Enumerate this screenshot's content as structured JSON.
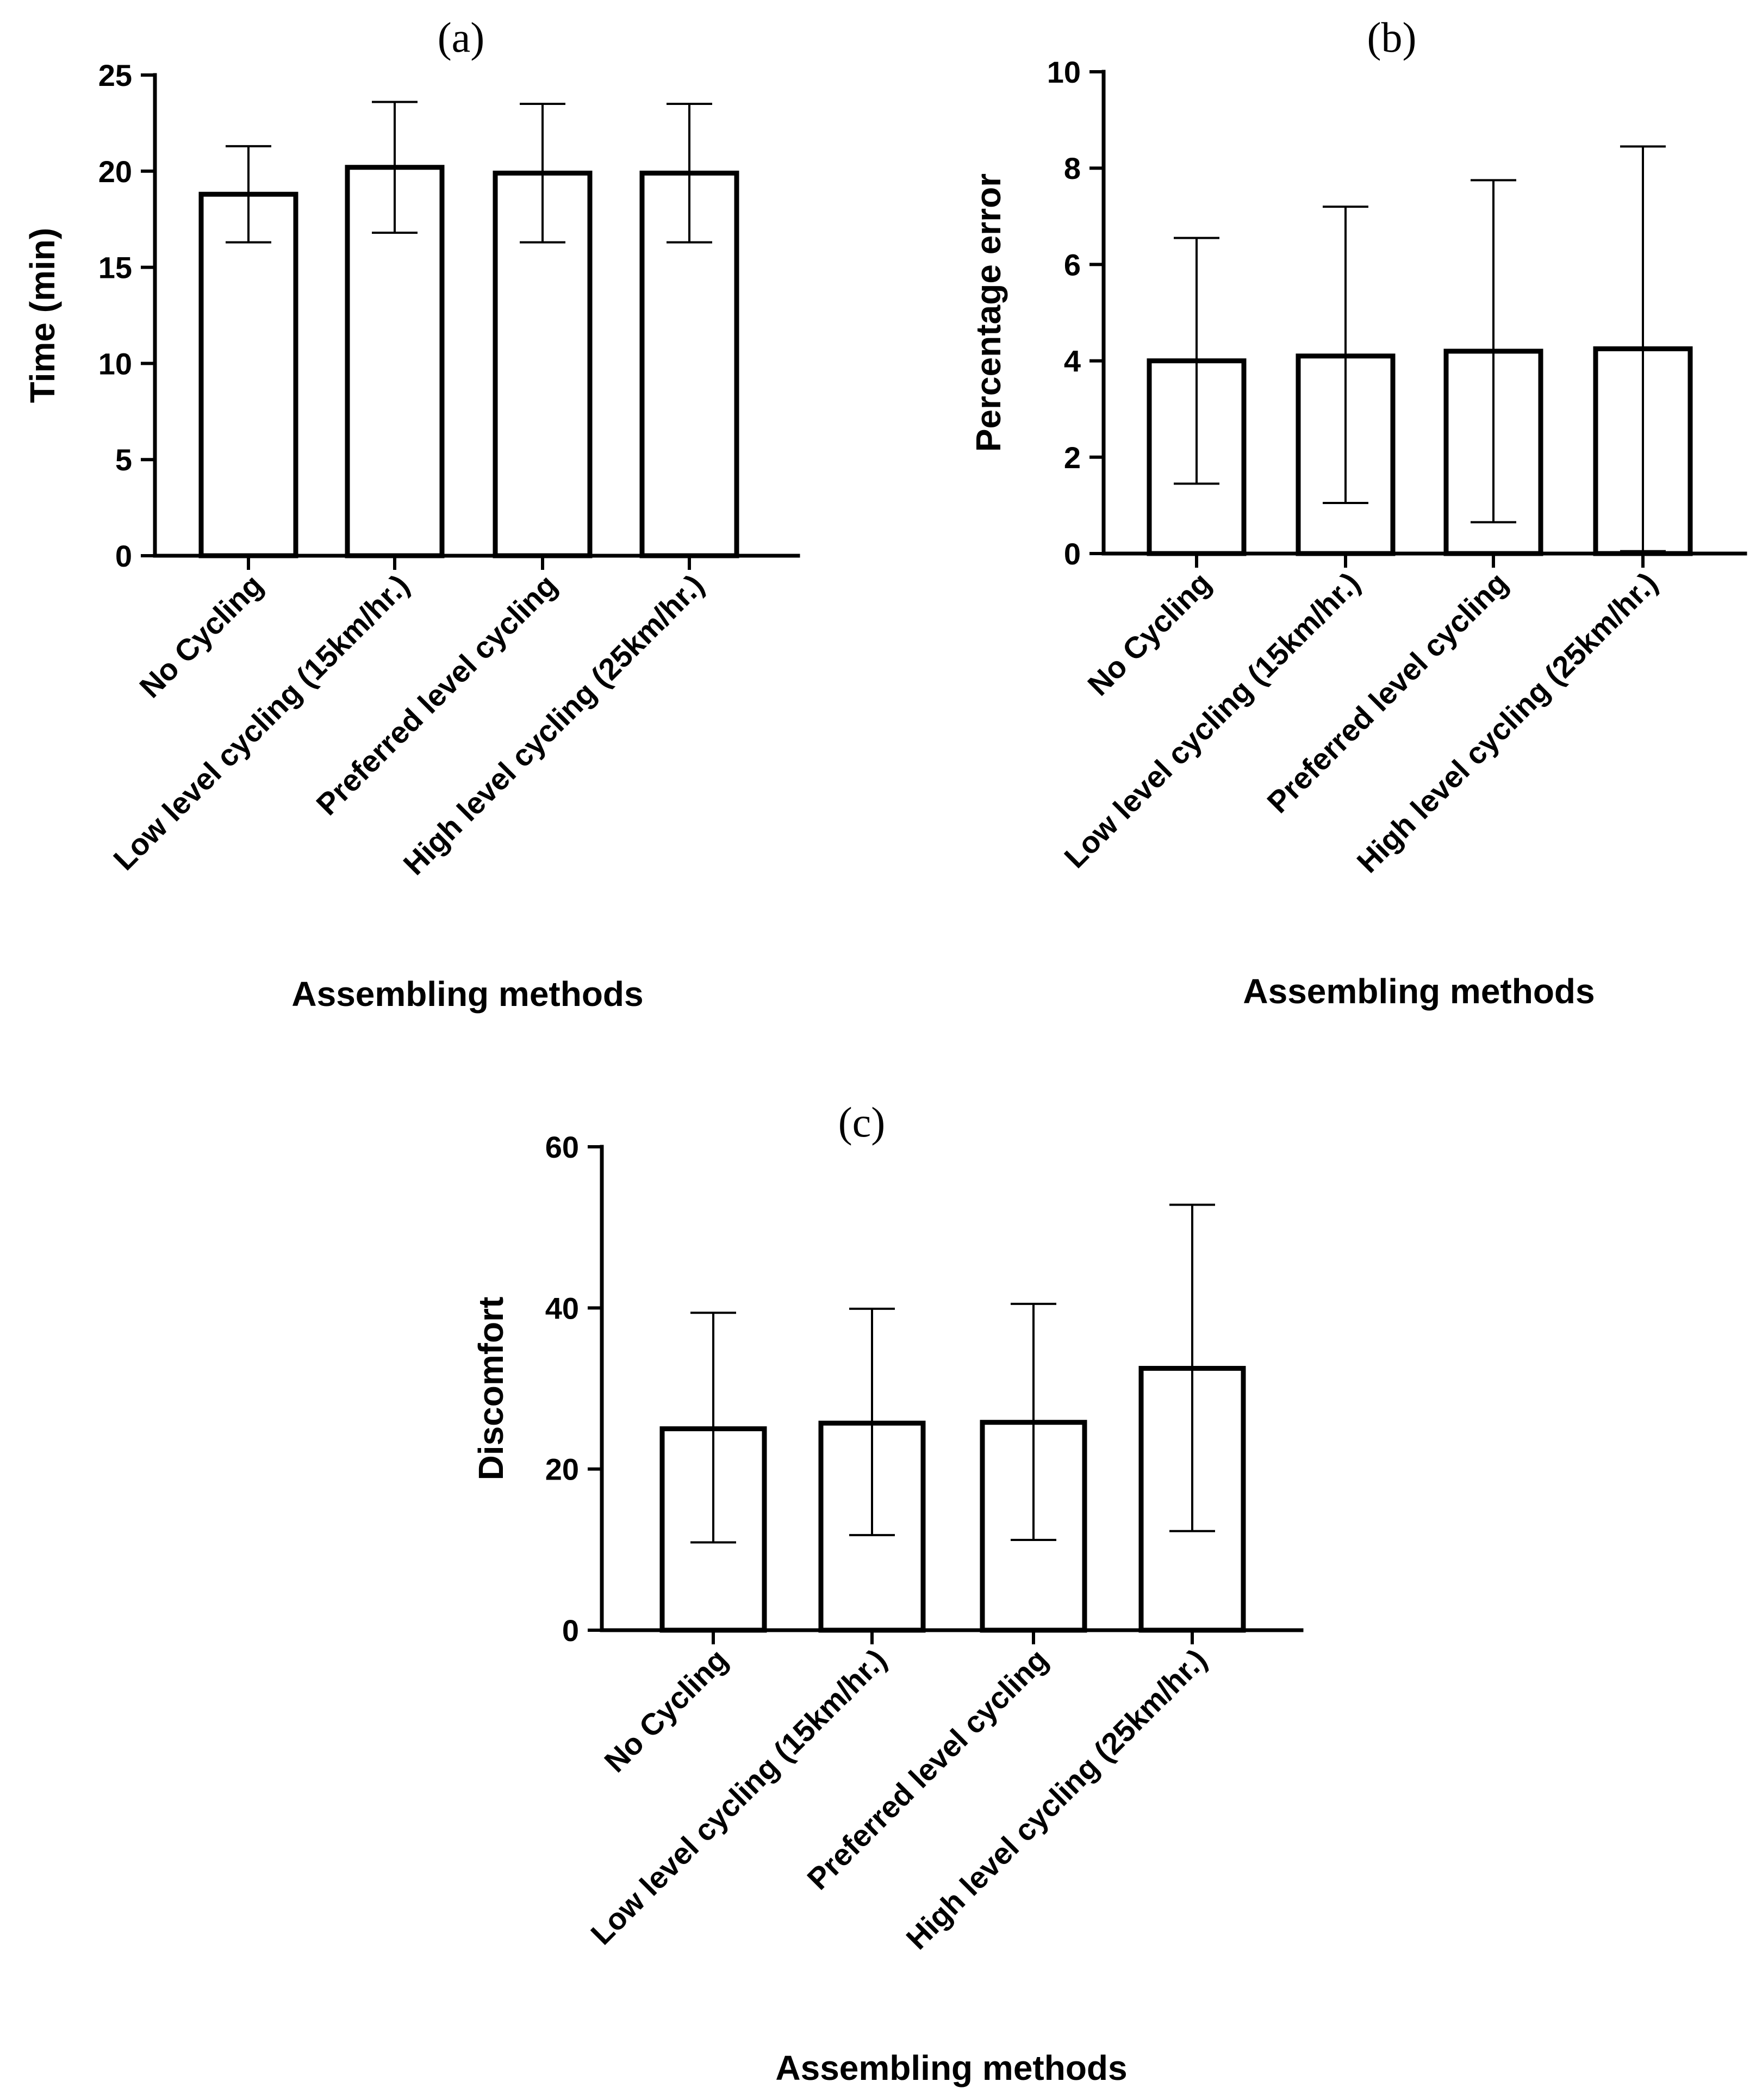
{
  "chart_data": [
    {
      "type": "bar",
      "panel_label": "(a)",
      "categories": [
        "No Cycling",
        "Low level cycling (15km/hr.)",
        "Preferred level cycling",
        "High level cycling (25km/hr.)"
      ],
      "values": [
        18.8,
        20.2,
        19.9,
        19.9
      ],
      "error_low": [
        16.3,
        16.8,
        16.3,
        16.3
      ],
      "error_high": [
        21.3,
        23.6,
        23.5,
        23.5
      ],
      "xlabel": "Assembling methods",
      "ylabel": "Time (min)",
      "ylim": [
        0,
        25
      ],
      "yticks": [
        0,
        5,
        10,
        15,
        20,
        25
      ],
      "ytick_labels": [
        "0",
        "5",
        "10",
        "15",
        "20",
        "25"
      ]
    },
    {
      "type": "bar",
      "panel_label": "(b)",
      "categories": [
        "No Cycling",
        "Low level cycling (15km/hr.)",
        "Preferred level cycling",
        "High level cycling (25km/hr.)"
      ],
      "values": [
        4.0,
        4.1,
        4.2,
        4.25
      ],
      "error_low": [
        1.45,
        1.05,
        0.65,
        0.05
      ],
      "error_high": [
        6.55,
        7.2,
        7.75,
        8.45
      ],
      "xlabel": "Assembling methods",
      "ylabel": "Percentage error",
      "ylim": [
        0,
        10
      ],
      "yticks": [
        0,
        2,
        4,
        6,
        8,
        10
      ],
      "ytick_labels": [
        "0",
        "2",
        "4",
        "6",
        "8",
        "10"
      ]
    },
    {
      "type": "bar",
      "panel_label": "(c)",
      "categories": [
        "No Cycling",
        "Low level cycling (15km/hr.)",
        "Preferred level cycling",
        "High level cycling (25km/hr.)"
      ],
      "values": [
        25.0,
        25.7,
        25.8,
        32.5
      ],
      "error_low": [
        10.9,
        11.8,
        11.2,
        12.3
      ],
      "error_high": [
        39.4,
        39.9,
        40.5,
        52.8
      ],
      "xlabel": "Assembling methods",
      "ylabel": "Discomfort",
      "ylim": [
        0,
        60
      ],
      "yticks": [
        0,
        20,
        40,
        60
      ],
      "ytick_labels": [
        "0",
        "20",
        "40",
        "60"
      ]
    }
  ]
}
